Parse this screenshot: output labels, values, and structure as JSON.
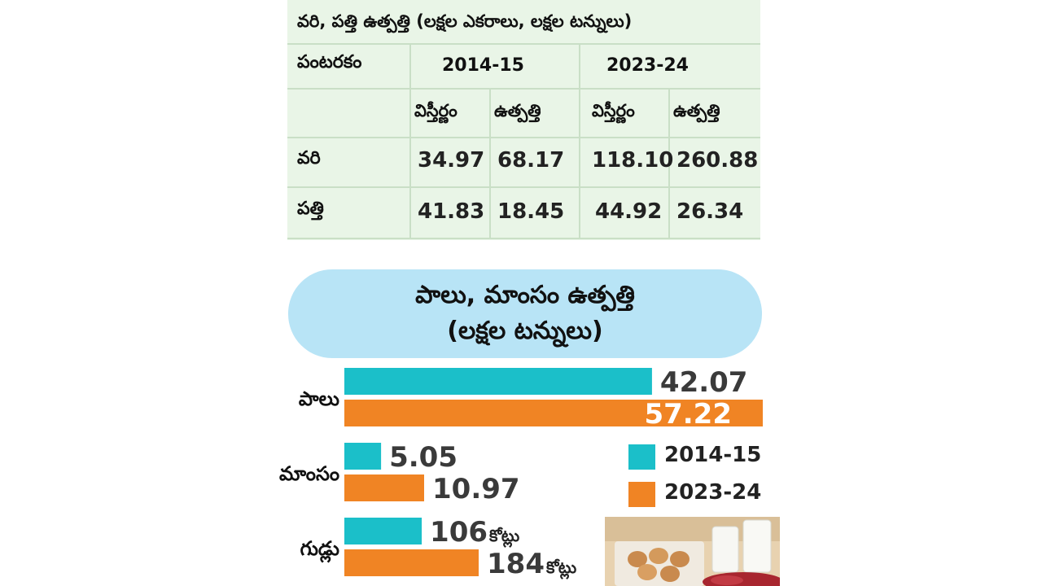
{
  "table": {
    "title": "వరి, పత్తి ఉత్పత్తి (లక్షల ఎకరాలు, లక్షల టన్నులు)",
    "crop_header": "పంటరకం",
    "year_headers": [
      "2014-15",
      "2023-24"
    ],
    "sub_headers": [
      "విస్తీర్ణం",
      "ఉత్పత్తి",
      "విస్తీర్ణం",
      "ఉత్పత్తి"
    ],
    "rows": [
      {
        "crop": "వరి",
        "values": [
          "34.97",
          "68.17",
          "118.10",
          "260.88"
        ]
      },
      {
        "crop": "పత్తి",
        "values": [
          "41.83",
          "18.45",
          "44.92",
          "26.34"
        ]
      }
    ],
    "bg_color": "#e9f5e7",
    "line_color": "#c9dfc6"
  },
  "chart_data": {
    "type": "bar",
    "orientation": "horizontal",
    "title": "పాలు, మాంసం ఉత్పత్తి",
    "subtitle": "(లక్షల టన్నులు)",
    "categories": [
      "పాలు",
      "మాంసం",
      "గుడ్లు"
    ],
    "series": [
      {
        "name": "2014-15",
        "color": "#1bbfc9",
        "values": [
          42.07,
          5.05,
          106
        ],
        "labels": [
          "42.07",
          "5.05",
          "106"
        ]
      },
      {
        "name": "2023-24",
        "color": "#f08424",
        "values": [
          57.22,
          10.97,
          184
        ],
        "labels": [
          "57.22",
          "10.97",
          "184"
        ]
      }
    ],
    "value_suffix": [
      "",
      "",
      "కోట్లు"
    ],
    "legend_position": "right",
    "banner_color": "#b8e4f6"
  }
}
